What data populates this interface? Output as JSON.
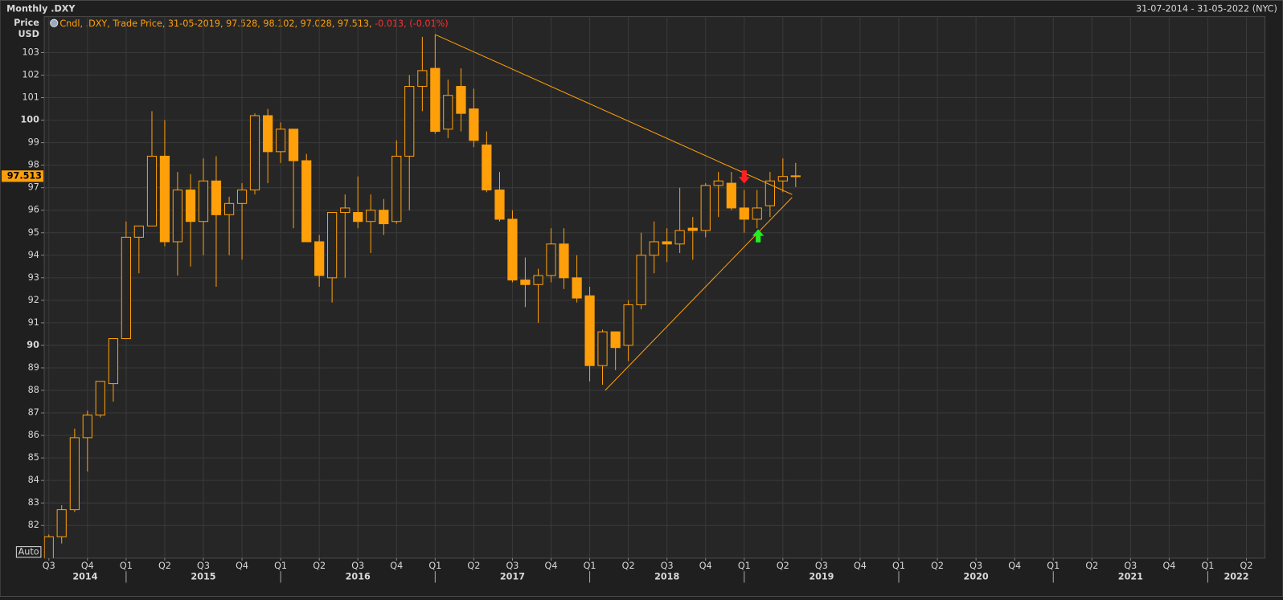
{
  "chart_data": {
    "type": "candlestick",
    "title": "Monthly .DXY",
    "date_range": "31-07-2014 - 31-05-2022 (NYC)",
    "ylabel": [
      "Price",
      "USD"
    ],
    "legend": {
      "text": "Cndl, .DXY, Trade Price,  31-05-2019, 97.528, 98.102, 97.028, 97.513,",
      "change": "-0.013, (-0.01%)"
    },
    "auto_button": "Auto",
    "color": "#ff9f0a",
    "change_color": "#ff3030",
    "grid": true,
    "x": [
      2014.5,
      2014.583,
      2014.667,
      2014.75,
      2014.833,
      2014.917,
      2015.0,
      2015.083,
      2015.167,
      2015.25,
      2015.333,
      2015.417,
      2015.5,
      2015.583,
      2015.667,
      2015.75,
      2015.833,
      2015.917,
      2016.0,
      2016.083,
      2016.167,
      2016.25,
      2016.333,
      2016.417,
      2016.5,
      2016.583,
      2016.667,
      2016.75,
      2016.833,
      2016.917,
      2017.0,
      2017.083,
      2017.167,
      2017.25,
      2017.333,
      2017.417,
      2017.5,
      2017.583,
      2017.667,
      2017.75,
      2017.833,
      2017.917,
      2018.0,
      2018.083,
      2018.167,
      2018.25,
      2018.333,
      2018.417,
      2018.5,
      2018.583,
      2018.667,
      2018.75,
      2018.833,
      2018.917,
      2019.0,
      2019.083,
      2019.167,
      2019.25,
      2019.333
    ],
    "open": [
      79.9,
      81.5,
      82.7,
      85.9,
      86.9,
      88.3,
      90.3,
      94.8,
      95.3,
      98.4,
      94.6,
      96.9,
      95.5,
      97.3,
      95.8,
      96.3,
      96.9,
      100.2,
      98.6,
      99.6,
      98.2,
      94.6,
      93.0,
      95.9,
      95.9,
      95.5,
      96.0,
      95.5,
      98.4,
      101.5,
      102.3,
      99.6,
      101.5,
      100.5,
      98.9,
      96.9,
      95.6,
      92.9,
      92.7,
      93.1,
      94.5,
      93.0,
      92.2,
      89.1,
      90.6,
      90.0,
      91.8,
      94.0,
      94.6,
      94.5,
      95.2,
      95.1,
      97.1,
      97.2,
      96.1,
      95.6,
      96.2,
      97.3,
      97.528
    ],
    "high": [
      81.6,
      82.9,
      86.3,
      87.1,
      88.4,
      90.3,
      95.5,
      95.3,
      100.4,
      100.0,
      97.7,
      97.6,
      98.3,
      98.4,
      96.6,
      97.2,
      100.3,
      100.5,
      99.9,
      99.6,
      98.5,
      94.9,
      95.9,
      96.7,
      97.5,
      96.7,
      96.5,
      99.1,
      102.0,
      103.7,
      103.8,
      101.8,
      102.3,
      101.4,
      99.5,
      97.7,
      96.0,
      93.9,
      93.4,
      95.2,
      95.2,
      94.0,
      92.6,
      90.7,
      90.6,
      92.0,
      95.0,
      95.5,
      95.2,
      97.0,
      95.7,
      97.2,
      97.7,
      97.7,
      96.9,
      96.9,
      97.7,
      98.3,
      98.102
    ],
    "low": [
      79.8,
      81.2,
      82.6,
      84.4,
      86.8,
      87.5,
      90.3,
      93.2,
      95.3,
      94.4,
      93.1,
      93.5,
      94.0,
      92.6,
      94.0,
      93.8,
      96.7,
      97.2,
      98.1,
      95.2,
      94.6,
      92.6,
      91.9,
      93.0,
      95.2,
      94.1,
      94.9,
      95.4,
      96.0,
      100.4,
      99.4,
      99.2,
      99.5,
      98.8,
      96.8,
      95.5,
      92.8,
      91.7,
      91.0,
      92.8,
      92.5,
      91.9,
      88.4,
      88.25,
      88.9,
      89.3,
      91.6,
      93.2,
      93.7,
      94.1,
      93.8,
      94.8,
      95.7,
      96.0,
      95.0,
      95.2,
      95.7,
      96.8,
      97.028
    ],
    "close": [
      81.5,
      82.7,
      85.9,
      86.9,
      88.4,
      90.3,
      94.8,
      95.3,
      98.4,
      94.6,
      96.9,
      95.5,
      97.3,
      95.8,
      96.3,
      96.9,
      100.2,
      98.6,
      99.6,
      98.2,
      94.6,
      93.1,
      95.9,
      96.1,
      95.5,
      96.0,
      95.4,
      98.4,
      101.5,
      102.2,
      99.5,
      101.1,
      100.3,
      99.1,
      96.9,
      95.6,
      92.9,
      92.7,
      93.1,
      94.5,
      93.0,
      92.1,
      89.1,
      90.6,
      89.9,
      91.8,
      94.0,
      94.6,
      94.5,
      95.1,
      95.1,
      97.1,
      97.3,
      96.1,
      95.6,
      96.1,
      97.3,
      97.5,
      97.513
    ],
    "trendlines": [
      {
        "x": [
          2017.0,
          2019.31
        ],
        "y": [
          103.8,
          96.7
        ]
      },
      {
        "x": [
          2018.1,
          2019.31
        ],
        "y": [
          88.0,
          96.57
        ]
      }
    ],
    "xlim": [
      2014.47,
      2022.37
    ],
    "ylim": [
      80.55,
      104.6
    ],
    "yticks": [
      82,
      83,
      84,
      85,
      86,
      87,
      88,
      89,
      90,
      91,
      92,
      93,
      94,
      95,
      96,
      97,
      98,
      99,
      100,
      101,
      102,
      103
    ],
    "xticks": [
      {
        "value": 2014.5,
        "label": "Q3"
      },
      {
        "value": 2014.75,
        "label": "Q4"
      },
      {
        "value": 2015.0,
        "label": "Q1"
      },
      {
        "value": 2015.25,
        "label": "Q2"
      },
      {
        "value": 2015.5,
        "label": "Q3"
      },
      {
        "value": 2015.75,
        "label": "Q4"
      },
      {
        "value": 2016.0,
        "label": "Q1"
      },
      {
        "value": 2016.25,
        "label": "Q2"
      },
      {
        "value": 2016.5,
        "label": "Q3"
      },
      {
        "value": 2016.75,
        "label": "Q4"
      },
      {
        "value": 2017.0,
        "label": "Q1"
      },
      {
        "value": 2017.25,
        "label": "Q2"
      },
      {
        "value": 2017.5,
        "label": "Q3"
      },
      {
        "value": 2017.75,
        "label": "Q4"
      },
      {
        "value": 2018.0,
        "label": "Q1"
      },
      {
        "value": 2018.25,
        "label": "Q2"
      },
      {
        "value": 2018.5,
        "label": "Q3"
      },
      {
        "value": 2018.75,
        "label": "Q4"
      },
      {
        "value": 2019.0,
        "label": "Q1"
      },
      {
        "value": 2019.25,
        "label": "Q2"
      },
      {
        "value": 2019.5,
        "label": "Q3"
      },
      {
        "value": 2019.75,
        "label": "Q4"
      },
      {
        "value": 2020.0,
        "label": "Q1"
      },
      {
        "value": 2020.25,
        "label": "Q2"
      },
      {
        "value": 2020.5,
        "label": "Q3"
      },
      {
        "value": 2020.75,
        "label": "Q4"
      },
      {
        "value": 2021.0,
        "label": "Q1"
      },
      {
        "value": 2021.25,
        "label": "Q2"
      },
      {
        "value": 2021.5,
        "label": "Q3"
      },
      {
        "value": 2021.75,
        "label": "Q4"
      },
      {
        "value": 2022.0,
        "label": "Q1"
      },
      {
        "value": 2022.25,
        "label": "Q2"
      }
    ],
    "years": [
      2014,
      2015,
      2016,
      2017,
      2018,
      2019,
      2020,
      2021,
      2022
    ]
  }
}
